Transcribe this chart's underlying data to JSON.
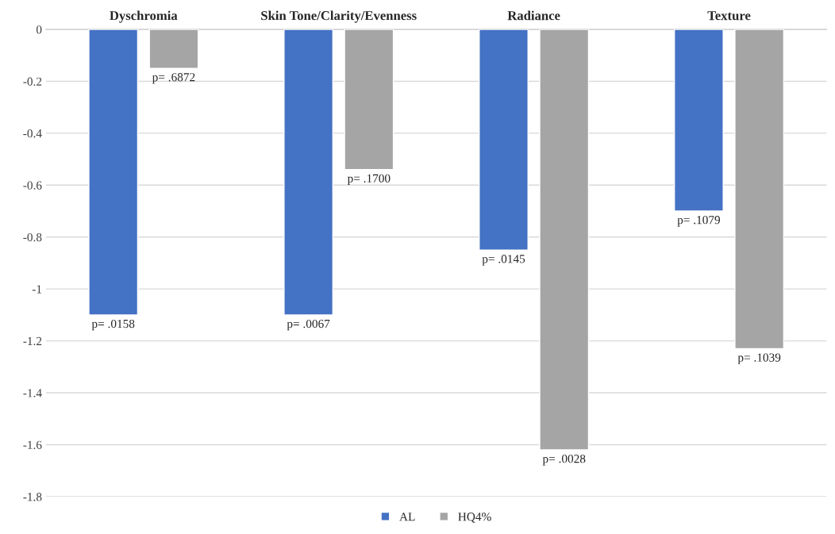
{
  "chart_data": {
    "type": "bar",
    "categories": [
      "Dyschromia",
      "Skin Tone/Clarity/Evenness",
      "Radiance",
      "Texture"
    ],
    "series": [
      {
        "name": "AL",
        "color": "#4472c4",
        "values": [
          -1.1,
          -1.1,
          -0.85,
          -0.7
        ]
      },
      {
        "name": "HQ4%",
        "color": "#a5a5a5",
        "values": [
          -0.15,
          -0.54,
          -1.62,
          -1.23
        ]
      }
    ],
    "annotations": [
      "p= .0158",
      "p= .6872",
      "p= .0067",
      "p= .1700",
      "p= .0145",
      "p= .0028",
      "p= .1079",
      "p= .1039"
    ],
    "ylim": [
      -1.8,
      0
    ],
    "yticks": [
      0,
      -0.2,
      -0.4,
      -0.6,
      -0.8,
      -1,
      -1.2,
      -1.4,
      -1.6,
      -1.8
    ],
    "grid": "y",
    "legend": "bottom"
  }
}
